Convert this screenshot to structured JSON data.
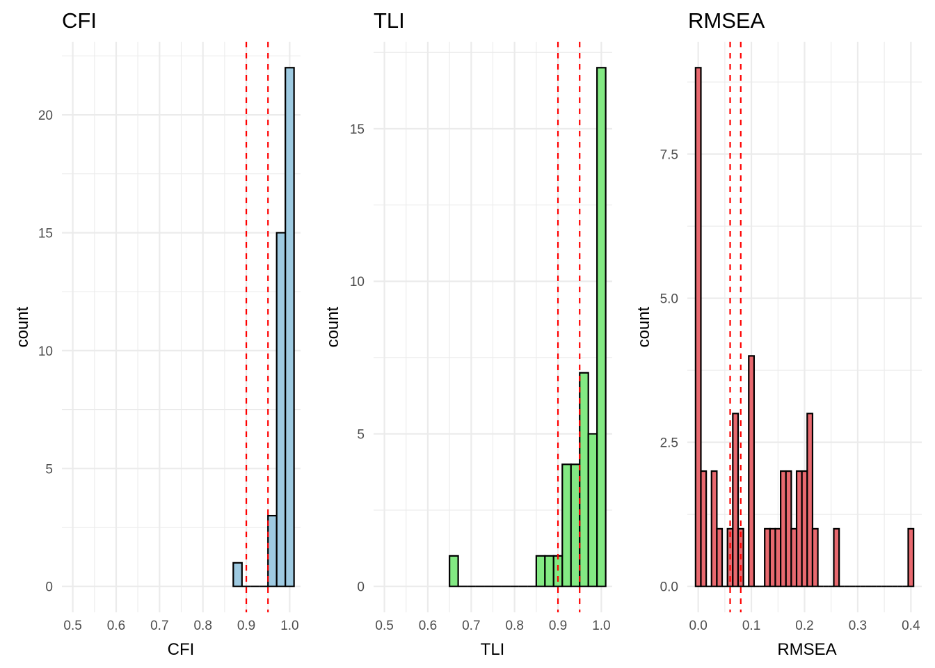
{
  "chart_data": [
    {
      "type": "bar",
      "subtype": "histogram",
      "title": "CFI",
      "xlabel": "CFI",
      "ylabel": "count",
      "bin_width": 0.02,
      "bin_centers": [
        0.88,
        0.9,
        0.92,
        0.94,
        0.96,
        0.98,
        1.0
      ],
      "values": [
        1,
        0,
        0,
        0,
        3,
        15,
        22
      ],
      "fill": "#9ecae1",
      "outline": "#000000",
      "reference_lines": [
        0.9,
        0.95
      ],
      "reference_line_color": "#ff0000",
      "reference_line_style": "dashed",
      "xlim": [
        0.475,
        1.025
      ],
      "ylim": [
        -1.1,
        23.1
      ],
      "x_ticks": [
        0.5,
        0.6,
        0.7,
        0.8,
        0.9,
        1.0
      ],
      "x_tick_labels": [
        "0.5",
        "0.6",
        "0.7",
        "0.8",
        "0.9",
        "1.0"
      ],
      "y_ticks": [
        0,
        5,
        10,
        15,
        20
      ],
      "y_tick_labels": [
        "0",
        "5",
        "10",
        "15",
        "20"
      ],
      "grid": true
    },
    {
      "type": "bar",
      "subtype": "histogram",
      "title": "TLI",
      "xlabel": "TLI",
      "ylabel": "count",
      "bin_width": 0.02,
      "bin_centers": [
        0.66,
        0.68,
        0.7,
        0.72,
        0.74,
        0.76,
        0.78,
        0.8,
        0.82,
        0.84,
        0.86,
        0.88,
        0.9,
        0.92,
        0.94,
        0.96,
        0.98,
        1.0
      ],
      "values": [
        1,
        0,
        0,
        0,
        0,
        0,
        0,
        0,
        0,
        0,
        1,
        1,
        1,
        4,
        4,
        7,
        5,
        17
      ],
      "fill": "#83e983",
      "outline": "#000000",
      "reference_lines": [
        0.9,
        0.95
      ],
      "reference_line_color": "#ff0000",
      "reference_line_style": "dashed",
      "xlim": [
        0.475,
        1.025
      ],
      "ylim": [
        -0.85,
        17.85
      ],
      "x_ticks": [
        0.5,
        0.6,
        0.7,
        0.8,
        0.9,
        1.0
      ],
      "x_tick_labels": [
        "0.5",
        "0.6",
        "0.7",
        "0.8",
        "0.9",
        "1.0"
      ],
      "y_ticks": [
        0,
        5,
        10,
        15
      ],
      "y_tick_labels": [
        "0",
        "5",
        "10",
        "15"
      ],
      "grid": true
    },
    {
      "type": "bar",
      "subtype": "histogram",
      "title": "RMSEA",
      "xlabel": "RMSEA",
      "ylabel": "count",
      "bin_width": 0.01,
      "bin_centers": [
        0.0,
        0.01,
        0.02,
        0.03,
        0.04,
        0.05,
        0.06,
        0.07,
        0.08,
        0.09,
        0.1,
        0.11,
        0.12,
        0.13,
        0.14,
        0.15,
        0.16,
        0.17,
        0.18,
        0.19,
        0.2,
        0.21,
        0.22,
        0.23,
        0.24,
        0.25,
        0.26,
        0.27,
        0.28,
        0.29,
        0.3,
        0.31,
        0.32,
        0.33,
        0.34,
        0.35,
        0.36,
        0.37,
        0.38,
        0.39,
        0.4
      ],
      "values": [
        9,
        2,
        0,
        2,
        1,
        0,
        1,
        3,
        1,
        0,
        4,
        0,
        0,
        1,
        1,
        1,
        2,
        2,
        1,
        2,
        2,
        3,
        1,
        0,
        0,
        0,
        1,
        0,
        0,
        0,
        0,
        0,
        0,
        0,
        0,
        0,
        0,
        0,
        0,
        0,
        1
      ],
      "fill": "#e8696f",
      "outline": "#000000",
      "reference_lines": [
        0.06,
        0.08
      ],
      "reference_line_color": "#ff0000",
      "reference_line_style": "dashed",
      "xlim": [
        -0.0205,
        0.4205
      ],
      "ylim": [
        -0.45,
        9.45
      ],
      "x_ticks": [
        0.0,
        0.1,
        0.2,
        0.3,
        0.4
      ],
      "x_tick_labels": [
        "0.0",
        "0.1",
        "0.2",
        "0.3",
        "0.4"
      ],
      "y_ticks": [
        0.0,
        2.5,
        5.0,
        7.5
      ],
      "y_tick_labels": [
        "0.0",
        "2.5",
        "5.0",
        "7.5"
      ],
      "grid": true
    }
  ]
}
